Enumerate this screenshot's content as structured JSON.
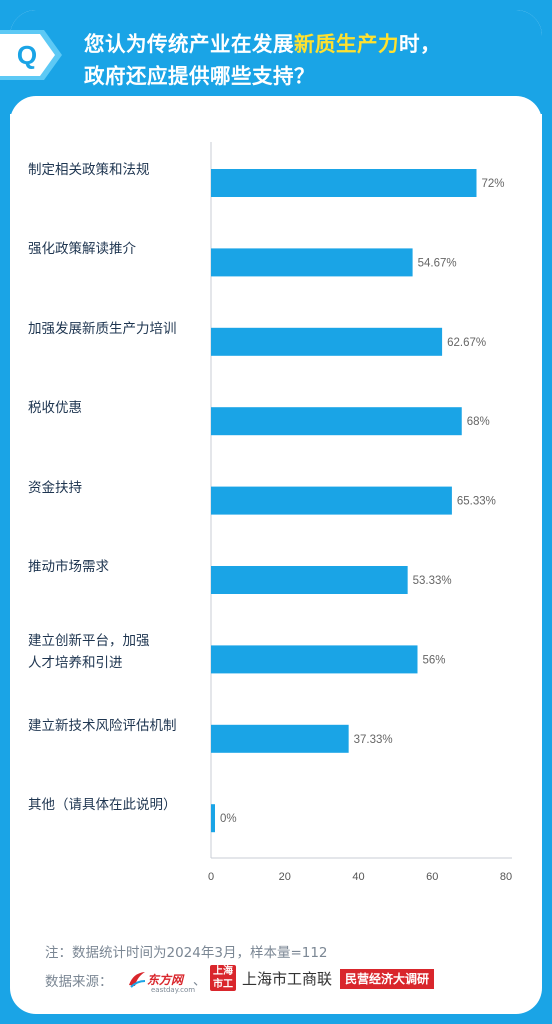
{
  "question": {
    "badge": "Q",
    "line1_before": "您认为传统产业在发展",
    "line1_highlight": "新质生产力",
    "line1_after": "时，",
    "line2": "政府还应提供哪些支持？"
  },
  "colors": {
    "background": "#1aa4e6",
    "bar": "#1aa4e6",
    "highlight": "#ffe12e",
    "label_text": "#1e3550",
    "value_text": "#666666"
  },
  "chart_data": {
    "type": "bar",
    "orientation": "horizontal",
    "categories": [
      [
        "制定相关政策和法规"
      ],
      [
        "强化政策解读推介"
      ],
      [
        "加强发展新质生产力培训"
      ],
      [
        "税收优惠"
      ],
      [
        "资金扶持"
      ],
      [
        "推动市场需求"
      ],
      [
        "建立创新平台，加强",
        "人才培养和引进"
      ],
      [
        "建立新技术风险评估机制"
      ],
      [
        "其他（请具体在此说明）"
      ]
    ],
    "values": [
      72,
      54.67,
      62.67,
      68,
      65.33,
      53.33,
      56,
      37.33,
      0
    ],
    "value_labels": [
      "72%",
      "54.67%",
      "62.67%",
      "68%",
      "65.33%",
      "53.33%",
      "56%",
      "37.33%",
      "0%"
    ],
    "xlim": [
      0,
      80
    ],
    "xticks": [
      "0",
      "20",
      "40",
      "60",
      "80"
    ],
    "grid": false
  },
  "footer": {
    "note": "注：数据统计时间为2024年3月，样本量=112",
    "source_label": "数据来源：",
    "source_separator": "、",
    "logo1_name": "东方网",
    "logo1_sub": "eastday.com",
    "logo2_seal": "上海 市工",
    "logo2_name": "上海市工商联",
    "logo3_name": "民营经济大调研"
  }
}
